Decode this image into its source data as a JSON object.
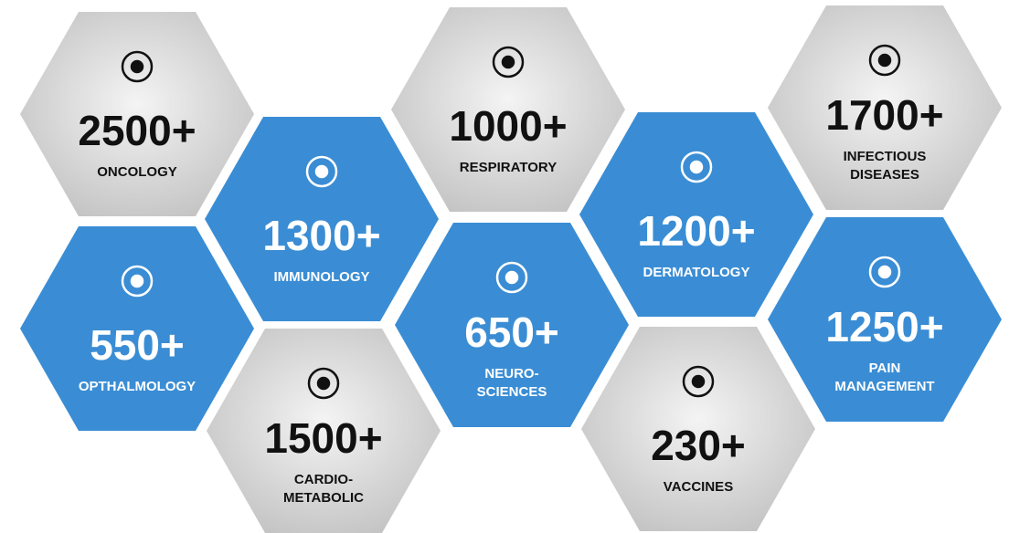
{
  "nodes": [
    {
      "count": "2500+",
      "label": [
        "ONCOLOGY"
      ],
      "color": "#d2d2d2"
    },
    {
      "count": "1300+",
      "label": [
        "IMMUNOLOGY"
      ],
      "color": "#3a8dd4"
    },
    {
      "count": "550+",
      "label": [
        "OPTHALMOLOGY"
      ],
      "color": "#3a8dd4"
    },
    {
      "count": "1500+",
      "label": [
        "CARDIO-",
        "METABOLIC"
      ],
      "color": "#d2d2d2"
    },
    {
      "count": "1000+",
      "label": [
        "RESPIRATORY"
      ],
      "color": "#d2d2d2"
    },
    {
      "count": "650+",
      "label": [
        "NEURO-",
        "SCIENCES"
      ],
      "color": "#3a8dd4"
    },
    {
      "count": "1200+",
      "label": [
        "DERMATOLOGY"
      ],
      "color": "#3a8dd4"
    },
    {
      "count": "230+",
      "label": [
        "VACCINES"
      ],
      "color": "#d2d2d2"
    },
    {
      "count": "1700+",
      "label": [
        "INFECTIOUS",
        "DISEASES"
      ],
      "color": "#d2d2d2"
    },
    {
      "count": "1250+",
      "label": [
        "PAIN",
        "MANAGEMENT"
      ],
      "color": "#3a8dd4"
    }
  ]
}
